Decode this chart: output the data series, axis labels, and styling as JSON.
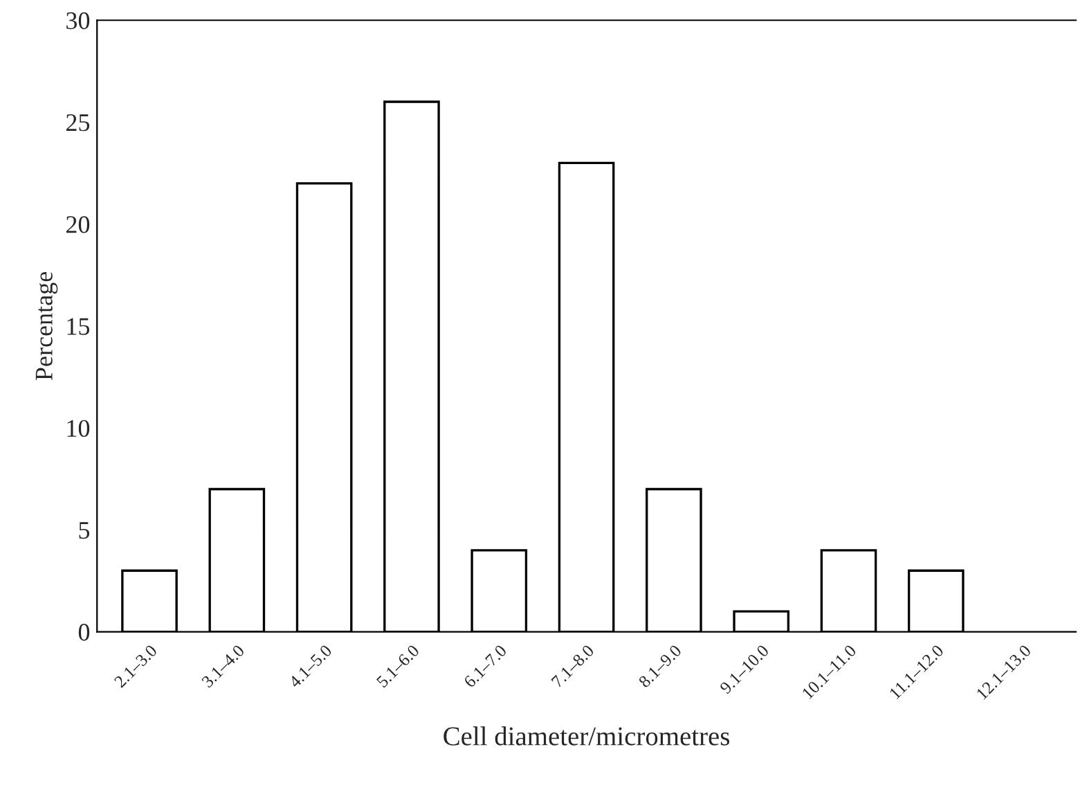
{
  "chart_data": {
    "type": "bar",
    "xlabel": "Cell diameter/micrometres",
    "ylabel": "Percentage",
    "categories": [
      "2.1–3.0",
      "3.1–4.0",
      "4.1–5.0",
      "5.1–6.0",
      "6.1–7.0",
      "7.1–8.0",
      "8.1–9.0",
      "9.1–10.0",
      "10.1–11.0",
      "11.1–12.0",
      "12.1–13.0"
    ],
    "values": [
      3,
      7,
      22,
      26,
      4,
      23,
      7,
      1,
      4,
      3,
      null
    ],
    "color": "#ffffff",
    "ylim": [
      0,
      30
    ],
    "yticks": [
      0,
      5,
      10,
      15,
      20,
      25,
      30
    ],
    "grid": false,
    "legend": false
  }
}
